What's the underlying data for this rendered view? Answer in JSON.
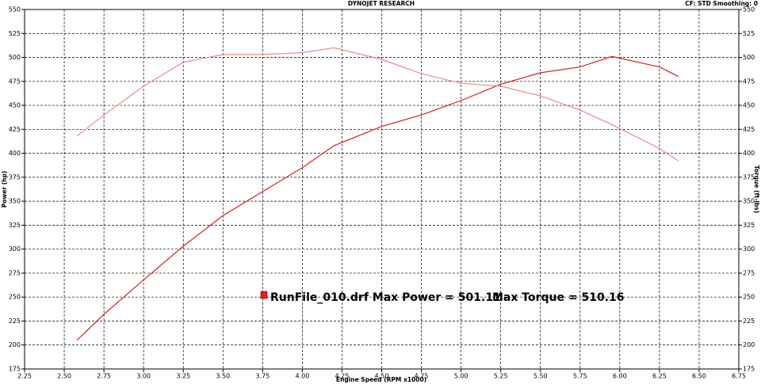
{
  "chart_data": {
    "type": "line",
    "title": "DYNOJET RESEARCH",
    "subtitle": "CF: STD  Smoothing: 0",
    "x_label": "Engine Speed (RPM x1000)",
    "y_label": "Power (hp)",
    "y2_label": "Torque (ft-lbs)",
    "annotations": [
      "RunFile_010.drf Max Power = 501.11",
      "Max Torque = 510.16"
    ],
    "annotation_color": "#e02020",
    "x": [
      2.58,
      2.75,
      3.0,
      3.25,
      3.5,
      3.75,
      4.0,
      4.2,
      4.5,
      4.75,
      5.0,
      5.25,
      5.5,
      5.75,
      5.95,
      6.25,
      6.37
    ],
    "series": [
      {
        "color": "#d42020",
        "values": [
          205,
          232,
          268,
          303,
          335,
          360,
          385,
          408,
          428,
          440,
          455,
          472,
          484,
          490,
          501,
          490,
          480
        ]
      },
      {
        "color": "#f08a8a",
        "axis": "y2",
        "values": [
          418,
          440,
          470,
          495,
          503,
          503,
          505,
          510,
          498,
          483,
          473,
          470,
          460,
          445,
          430,
          405,
          392
        ]
      }
    ],
    "xlim": [
      2.25,
      6.75
    ],
    "xticks": [
      2.25,
      {
        "value": 2.5,
        "label": "2.50"
      },
      2.75,
      {
        "value": 3,
        "label": "3.00"
      },
      3.25,
      {
        "value": 3.5,
        "label": "3.50"
      },
      3.75,
      {
        "value": 4,
        "label": "4.00"
      },
      4.25,
      {
        "value": 4.5,
        "label": "4.50"
      },
      4.75,
      {
        "value": 5,
        "label": "5.00"
      },
      5.25,
      {
        "value": 5.5,
        "label": "5.50"
      },
      5.75,
      {
        "value": 6,
        "label": "6.00"
      },
      6.25,
      {
        "value": 6.5,
        "label": "6.50"
      },
      6.75
    ],
    "ylim": [
      175,
      550
    ],
    "yticks": [
      175,
      200,
      225,
      250,
      275,
      300,
      325,
      350,
      375,
      400,
      425,
      450,
      475,
      500,
      525,
      550
    ],
    "y2lim": [
      175,
      550
    ],
    "y2ticks": [
      175,
      200,
      225,
      250,
      275,
      300,
      325,
      350,
      375,
      400,
      425,
      450,
      475,
      500,
      525,
      550
    ],
    "grid": true
  }
}
